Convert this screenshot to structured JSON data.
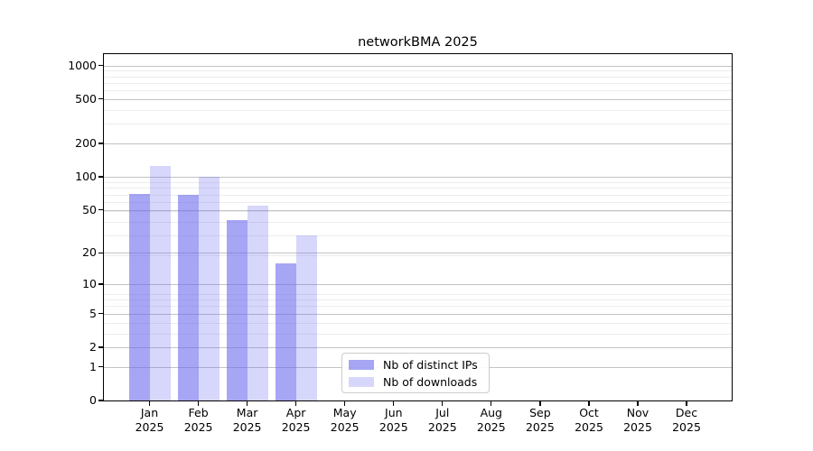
{
  "chart_data": {
    "type": "bar",
    "title": "networkBMA 2025",
    "categories": [
      {
        "m": "Jan",
        "y": "2025"
      },
      {
        "m": "Feb",
        "y": "2025"
      },
      {
        "m": "Mar",
        "y": "2025"
      },
      {
        "m": "Apr",
        "y": "2025"
      },
      {
        "m": "May",
        "y": "2025"
      },
      {
        "m": "Jun",
        "y": "2025"
      },
      {
        "m": "Jul",
        "y": "2025"
      },
      {
        "m": "Aug",
        "y": "2025"
      },
      {
        "m": "Sep",
        "y": "2025"
      },
      {
        "m": "Oct",
        "y": "2025"
      },
      {
        "m": "Nov",
        "y": "2025"
      },
      {
        "m": "Dec",
        "y": "2025"
      }
    ],
    "series": [
      {
        "name": "Nb of distinct IPs",
        "color": "rgba(102,102,238,0.58)",
        "values": [
          70,
          68,
          40,
          16,
          null,
          null,
          null,
          null,
          null,
          null,
          null,
          null
        ]
      },
      {
        "name": "Nb of downloads",
        "color": "rgba(102,102,238,0.26)",
        "values": [
          125,
          100,
          55,
          29,
          null,
          null,
          null,
          null,
          null,
          null,
          null,
          null
        ]
      }
    ],
    "y_axis": {
      "scale": "log10(value+1)",
      "ticks": [
        1000,
        500,
        200,
        100,
        50,
        20,
        10,
        5,
        2,
        1,
        0
      ],
      "range": [
        0,
        1300
      ]
    },
    "x_axis": {
      "label_style": "two-line month over year"
    },
    "grid": "on",
    "legend": {
      "position": "bottom-center",
      "entries": [
        "Nb of distinct IPs",
        "Nb of downloads"
      ]
    },
    "colors": {
      "bar_distinct_ips_flat": "#a6a6f3",
      "bar_downloads_flat": "#d9d9f9",
      "grid_major": "#c3c3c3",
      "grid_minor": "#ececec",
      "axis": "#000000"
    }
  }
}
